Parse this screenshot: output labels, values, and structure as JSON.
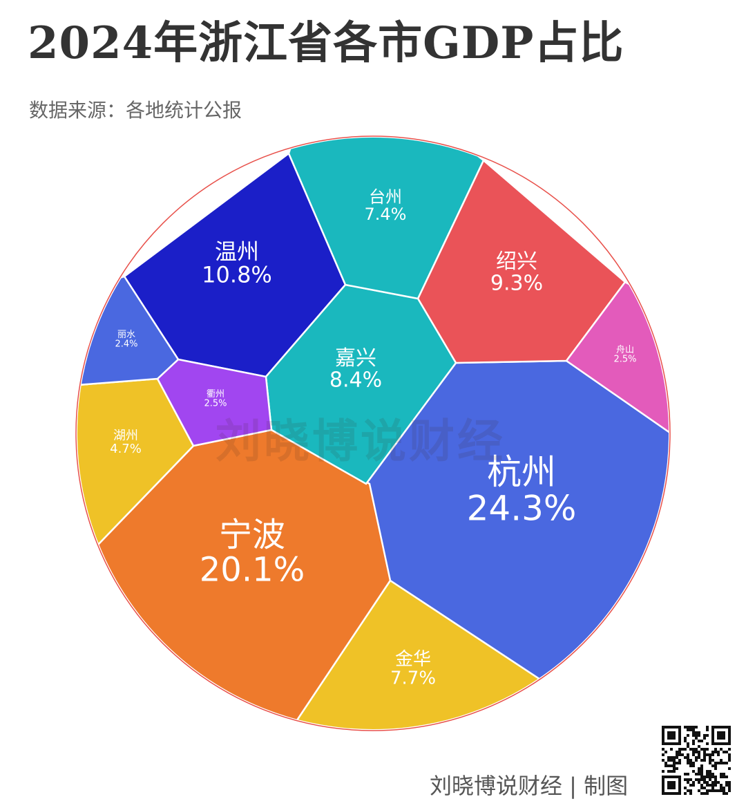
{
  "header": {
    "title": "2024年浙江省各市GDP占比",
    "subtitle": "数据来源：各地统计公报"
  },
  "watermark": "刘晓博说财经",
  "credit": "刘晓博说财经 | 制图",
  "chart_data": {
    "type": "voronoi-treemap",
    "title": "2024年浙江省各市GDP占比",
    "unit": "%",
    "items": [
      {
        "name": "杭州",
        "value": 24.3,
        "label": "24.3%",
        "color": "#4a68e0"
      },
      {
        "name": "宁波",
        "value": 20.1,
        "label": "20.1%",
        "color": "#ee7a2c"
      },
      {
        "name": "温州",
        "value": 10.8,
        "label": "10.8%",
        "color": "#1b1fc8"
      },
      {
        "name": "绍兴",
        "value": 9.3,
        "label": "9.3%",
        "color": "#ea5358"
      },
      {
        "name": "嘉兴",
        "value": 8.4,
        "label": "8.4%",
        "color": "#1ab8be"
      },
      {
        "name": "金华",
        "value": 7.7,
        "label": "7.7%",
        "color": "#efc227"
      },
      {
        "name": "台州",
        "value": 7.4,
        "label": "7.4%",
        "color": "#1ab8be"
      },
      {
        "name": "湖州",
        "value": 4.7,
        "label": "4.7%",
        "color": "#efc227"
      },
      {
        "name": "舟山",
        "value": 2.5,
        "label": "2.5%",
        "color": "#e35bbb"
      },
      {
        "name": "衢州",
        "value": 2.5,
        "label": "2.5%",
        "color": "#a146f0"
      },
      {
        "name": "丽水",
        "value": 2.4,
        "label": "2.4%",
        "color": "#4a68e0"
      }
    ]
  }
}
